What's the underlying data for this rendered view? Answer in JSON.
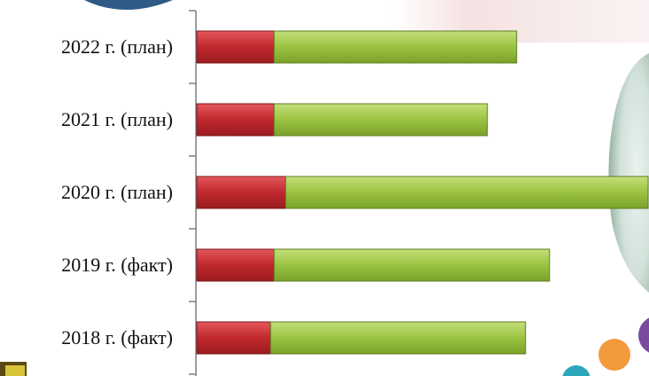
{
  "colors": {
    "segment_red": "#c0282d",
    "segment_green": "#9bc341",
    "axis": "#7f7f7f",
    "label_text": "#111111",
    "circle_purple": "#7b4a9e",
    "circle_orange": "#f39a3c",
    "circle_teal": "#2aa7b8",
    "oval_blue": "#2f5a86"
  },
  "chart_data": {
    "type": "bar",
    "orientation": "horizontal",
    "stacked": true,
    "categories": [
      "2022 г. (план)",
      "2021 г. (план)",
      "2020 г. (план)",
      "2019 г. (факт)",
      "2018 г. (факт)"
    ],
    "series": [
      {
        "values": [
          87,
          87,
          100,
          87,
          83
        ],
        "color": "#c0282d"
      },
      {
        "values": [
          273,
          240,
          408,
          310,
          287
        ],
        "color": "#9bc341"
      }
    ],
    "xlim": [
      0,
      508
    ],
    "title": "",
    "xlabel": "",
    "ylabel": "",
    "grid": false,
    "legend": "none"
  }
}
